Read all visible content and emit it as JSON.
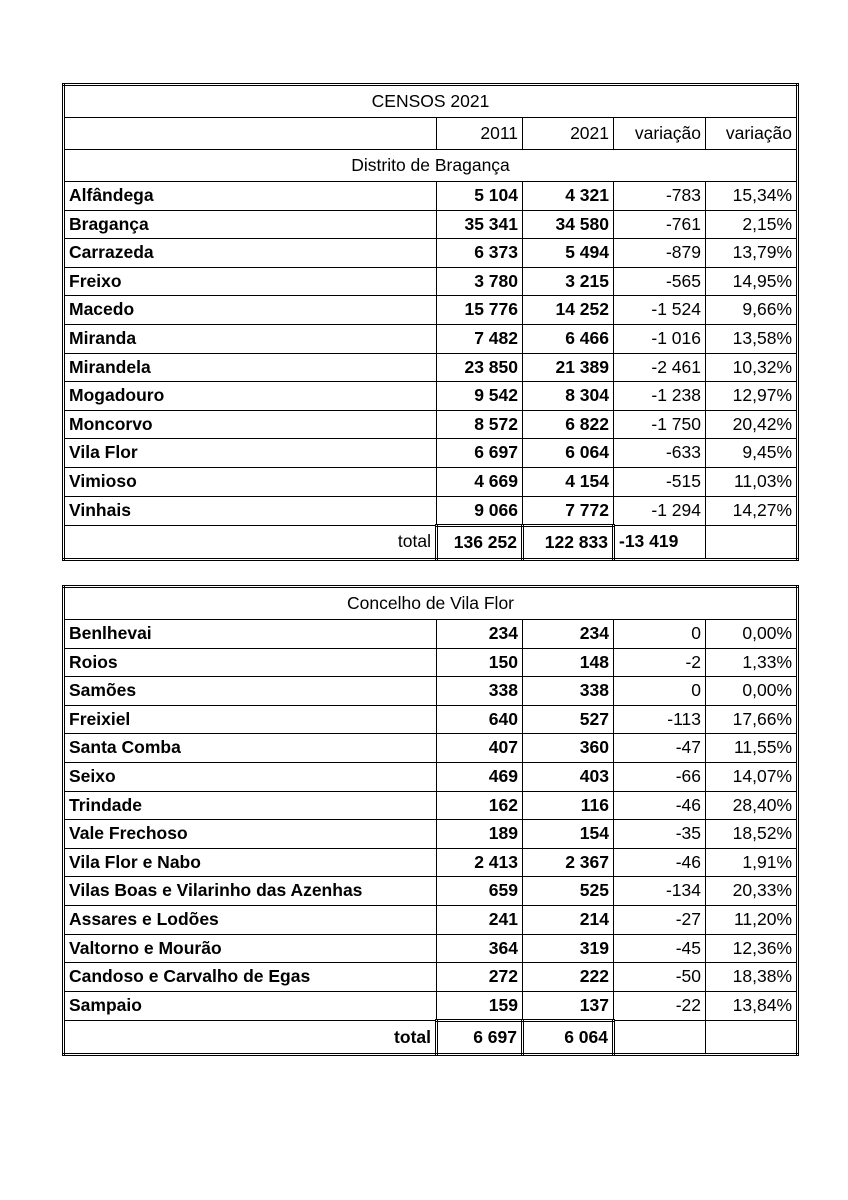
{
  "title": "CENSOS 2021",
  "headers": [
    "",
    "2011",
    "2021",
    "variação",
    "variação"
  ],
  "district": {
    "subtitle": "Distrito de Bragança",
    "rows": [
      [
        "Alfândega",
        "5 104",
        "4 321",
        "-783",
        "15,34%"
      ],
      [
        "Bragança",
        "35 341",
        "34 580",
        "-761",
        "2,15%"
      ],
      [
        "Carrazeda",
        "6 373",
        "5 494",
        "-879",
        "13,79%"
      ],
      [
        "Freixo",
        "3 780",
        "3 215",
        "-565",
        "14,95%"
      ],
      [
        "Macedo",
        "15 776",
        "14 252",
        "-1 524",
        "9,66%"
      ],
      [
        "Miranda",
        "7 482",
        "6 466",
        "-1 016",
        "13,58%"
      ],
      [
        "Mirandela",
        "23 850",
        "21 389",
        "-2 461",
        "10,32%"
      ],
      [
        "Mogadouro",
        "9 542",
        "8 304",
        "-1 238",
        "12,97%"
      ],
      [
        "Moncorvo",
        "8 572",
        "6 822",
        "-1 750",
        "20,42%"
      ],
      [
        "Vila Flor",
        "6 697",
        "6 064",
        "-633",
        "9,45%"
      ],
      [
        "Vimioso",
        "4 669",
        "4 154",
        "-515",
        "11,03%"
      ],
      [
        "Vinhais",
        "9 066",
        "7 772",
        "-1 294",
        "14,27%"
      ]
    ],
    "total": [
      "total",
      "136 252",
      "122 833",
      "-13 419",
      ""
    ]
  },
  "concelho": {
    "subtitle": "Concelho de Vila Flor",
    "rows": [
      [
        "Benlhevai",
        "234",
        "234",
        "0",
        "0,00%"
      ],
      [
        "Roios",
        "150",
        "148",
        "-2",
        "1,33%"
      ],
      [
        "Samões",
        "338",
        "338",
        "0",
        "0,00%"
      ],
      [
        "Freixiel",
        "640",
        "527",
        "-113",
        "17,66%"
      ],
      [
        "Santa Comba",
        "407",
        "360",
        "-47",
        "11,55%"
      ],
      [
        "Seixo",
        "469",
        "403",
        "-66",
        "14,07%"
      ],
      [
        "Trindade",
        "162",
        "116",
        "-46",
        "28,40%"
      ],
      [
        "Vale Frechoso",
        "189",
        "154",
        "-35",
        "18,52%"
      ],
      [
        "Vila Flor e Nabo",
        "2 413",
        "2 367",
        "-46",
        "1,91%"
      ],
      [
        "Vilas Boas e Vilarinho das Azenhas",
        "659",
        "525",
        "-134",
        "20,33%"
      ],
      [
        "Assares e Lodões",
        "241",
        "214",
        "-27",
        "11,20%"
      ],
      [
        "Valtorno e Mourão",
        "364",
        "319",
        "-45",
        "12,36%"
      ],
      [
        "Candoso e Carvalho de Egas",
        "272",
        "222",
        "-50",
        "18,38%"
      ],
      [
        "Sampaio",
        "159",
        "137",
        "-22",
        "13,84%"
      ]
    ],
    "total": [
      "total",
      "6 697",
      "6 064",
      "",
      ""
    ]
  }
}
